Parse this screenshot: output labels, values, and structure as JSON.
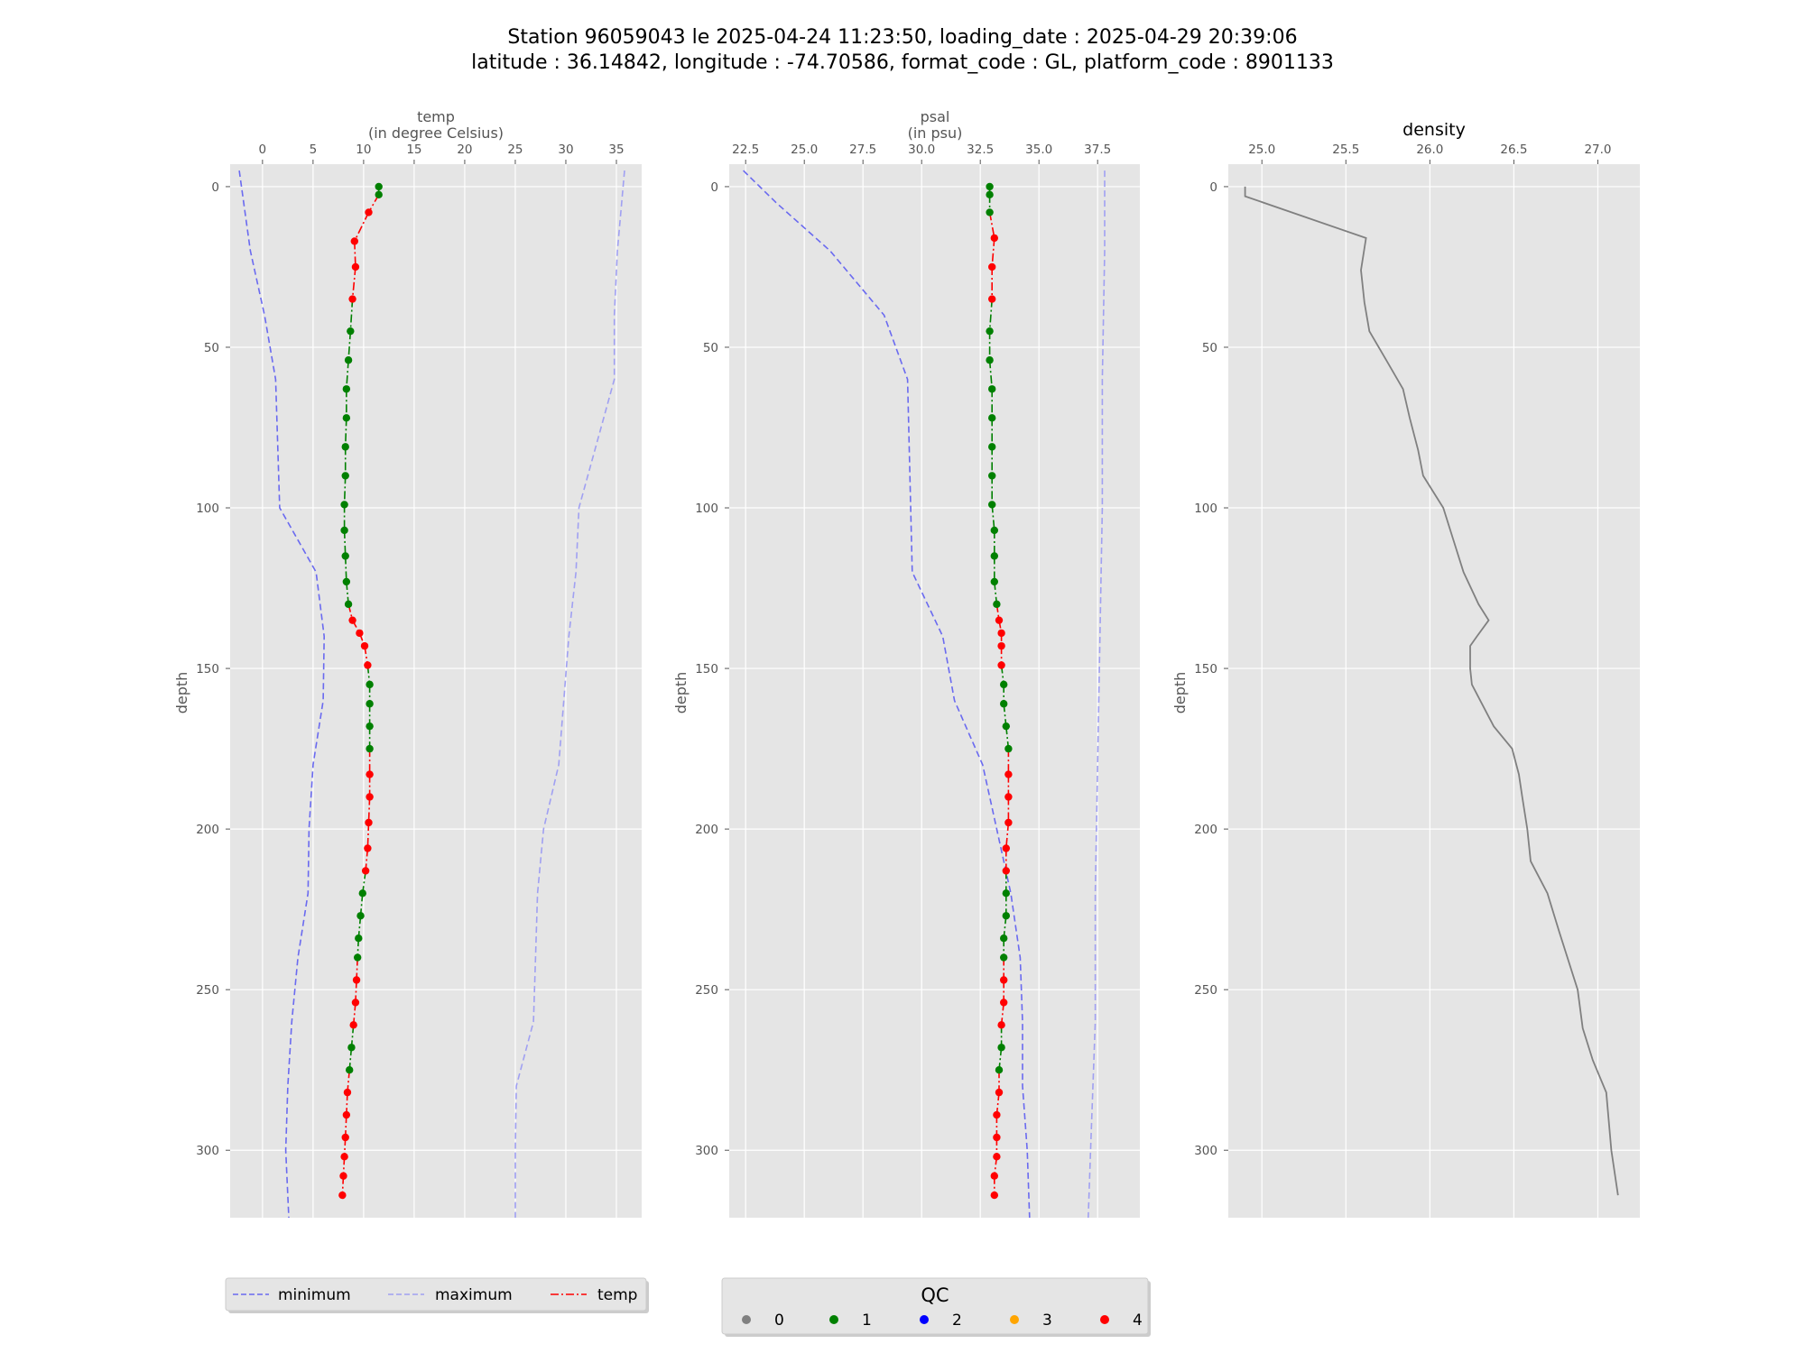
{
  "figure": {
    "title_line1": "Station 96059043 le 2025-04-24 11:23:50, loading_date : 2025-04-29 20:39:06",
    "title_line2": "latitude : 36.14842, longitude : -74.70586, format_code : GL, platform_code : 8901133"
  },
  "colors": {
    "panel_bg": "#e5e5e5",
    "grid": "#ffffff",
    "minimum": "#6a6af0",
    "maximum": "#a0a0f2",
    "qc_line_good": "#008000",
    "qc_line_bad": "#ff0000",
    "density_line": "#808080"
  },
  "chart_data": [
    {
      "type": "line",
      "panel": "temp",
      "xlabel_line1": "temp",
      "xlabel_line2": "(in degree Celsius)",
      "ylabel": "depth",
      "xlim": [
        -3.2,
        37.5
      ],
      "ylim": [
        321,
        -7
      ],
      "xticks": [
        0,
        5,
        10,
        15,
        20,
        25,
        30,
        35
      ],
      "yticks": [
        0,
        50,
        100,
        150,
        200,
        250,
        300
      ],
      "grid": true,
      "x_axis_position": "top",
      "minimum": {
        "name": "minimum",
        "depth": [
          -5,
          20,
          40,
          60,
          100,
          120,
          140,
          160,
          180,
          200,
          220,
          240,
          260,
          280,
          300,
          321
        ],
        "values": [
          -2.3,
          -1.2,
          0.2,
          1.3,
          1.7,
          5.3,
          6.1,
          6.0,
          5.0,
          4.6,
          4.5,
          3.5,
          2.9,
          2.5,
          2.3,
          2.6
        ]
      },
      "maximum": {
        "name": "maximum",
        "depth": [
          -5,
          20,
          40,
          60,
          100,
          120,
          140,
          160,
          180,
          200,
          220,
          240,
          260,
          280,
          300,
          321
        ],
        "values": [
          35.8,
          35.1,
          34.8,
          34.8,
          31.3,
          31.0,
          30.3,
          29.8,
          29.3,
          27.8,
          27.2,
          27.0,
          26.8,
          25.1,
          25.0,
          25.0
        ]
      },
      "profile": {
        "name": "temp",
        "depth": [
          0,
          2.5,
          8,
          17,
          25,
          35,
          45,
          54,
          63,
          72,
          81,
          90,
          99,
          107,
          115,
          123,
          130,
          135,
          139,
          143,
          149,
          155,
          161,
          168,
          175,
          183,
          190,
          198,
          206,
          213,
          220,
          227,
          234,
          240,
          247,
          254,
          261,
          268,
          275,
          282,
          289,
          296,
          302,
          308,
          314
        ],
        "values": [
          11.5,
          11.5,
          10.5,
          9.1,
          9.2,
          8.9,
          8.7,
          8.5,
          8.3,
          8.3,
          8.2,
          8.2,
          8.1,
          8.1,
          8.2,
          8.3,
          8.5,
          8.9,
          9.6,
          10.1,
          10.4,
          10.6,
          10.6,
          10.6,
          10.6,
          10.6,
          10.6,
          10.5,
          10.4,
          10.2,
          9.9,
          9.7,
          9.5,
          9.4,
          9.3,
          9.2,
          9.0,
          8.8,
          8.6,
          8.4,
          8.3,
          8.2,
          8.1,
          8.0,
          7.9
        ],
        "qc": [
          1,
          1,
          4,
          4,
          4,
          4,
          1,
          1,
          1,
          1,
          1,
          1,
          1,
          1,
          1,
          1,
          1,
          4,
          4,
          4,
          4,
          1,
          1,
          1,
          1,
          4,
          4,
          4,
          4,
          4,
          1,
          1,
          1,
          1,
          4,
          4,
          4,
          1,
          1,
          4,
          4,
          4,
          4,
          4,
          4
        ]
      }
    },
    {
      "type": "line",
      "panel": "psal",
      "xlabel_line1": "psal",
      "xlabel_line2": "(in psu)",
      "ylabel": "depth",
      "xlim": [
        21.8,
        39.3
      ],
      "ylim": [
        321,
        -7
      ],
      "xticks": [
        22.5,
        25.0,
        27.5,
        30.0,
        32.5,
        35.0,
        37.5
      ],
      "xtick_labels": [
        "22.5",
        "25.0",
        "27.5",
        "30.0",
        "32.5",
        "35.0",
        "37.5"
      ],
      "yticks": [
        0,
        50,
        100,
        150,
        200,
        250,
        300
      ],
      "grid": true,
      "x_axis_position": "top",
      "minimum": {
        "name": "minimum",
        "depth": [
          -5,
          5,
          20,
          40,
          60,
          120,
          140,
          160,
          180,
          200,
          220,
          240,
          260,
          280,
          300,
          321
        ],
        "values": [
          22.4,
          23.8,
          26.1,
          28.4,
          29.4,
          29.6,
          30.9,
          31.4,
          32.6,
          33.2,
          33.8,
          34.2,
          34.3,
          34.3,
          34.5,
          34.6
        ]
      },
      "maximum": {
        "name": "maximum",
        "depth": [
          -5,
          20,
          60,
          100,
          140,
          180,
          220,
          260,
          280,
          300,
          321
        ],
        "values": [
          37.8,
          37.8,
          37.7,
          37.7,
          37.6,
          37.5,
          37.4,
          37.4,
          37.3,
          37.2,
          37.1
        ]
      },
      "profile": {
        "name": "psal",
        "depth": [
          0,
          2.5,
          8,
          16,
          25,
          35,
          45,
          54,
          63,
          72,
          81,
          90,
          99,
          107,
          115,
          123,
          130,
          135,
          139,
          143,
          149,
          155,
          161,
          168,
          175,
          183,
          190,
          198,
          206,
          213,
          220,
          227,
          234,
          240,
          247,
          254,
          261,
          268,
          275,
          282,
          289,
          296,
          302,
          308,
          314
        ],
        "values": [
          32.9,
          32.9,
          32.9,
          33.1,
          33.0,
          33.0,
          32.9,
          32.9,
          33.0,
          33.0,
          33.0,
          33.0,
          33.0,
          33.1,
          33.1,
          33.1,
          33.2,
          33.3,
          33.4,
          33.4,
          33.4,
          33.5,
          33.5,
          33.6,
          33.7,
          33.7,
          33.7,
          33.7,
          33.6,
          33.6,
          33.6,
          33.6,
          33.5,
          33.5,
          33.5,
          33.5,
          33.4,
          33.4,
          33.3,
          33.3,
          33.2,
          33.2,
          33.2,
          33.1,
          33.1
        ],
        "qc": [
          1,
          1,
          1,
          4,
          4,
          4,
          1,
          1,
          1,
          1,
          1,
          1,
          1,
          1,
          1,
          1,
          1,
          4,
          4,
          4,
          4,
          1,
          1,
          1,
          1,
          4,
          4,
          4,
          4,
          4,
          1,
          1,
          1,
          1,
          4,
          4,
          4,
          1,
          1,
          4,
          4,
          4,
          4,
          4,
          4
        ]
      }
    },
    {
      "type": "line",
      "panel": "density",
      "title": "density",
      "ylabel": "depth",
      "xlim": [
        24.8,
        27.25
      ],
      "ylim": [
        321,
        -7
      ],
      "xticks": [
        25.0,
        25.5,
        26.0,
        26.5,
        27.0
      ],
      "xtick_labels": [
        "25.0",
        "25.5",
        "26.0",
        "26.5",
        "27.0"
      ],
      "yticks": [
        0,
        50,
        100,
        150,
        200,
        250,
        300
      ],
      "grid": true,
      "x_axis_position": "top",
      "profile": {
        "depth": [
          0,
          3,
          16,
          26,
          36,
          45,
          54,
          63,
          72,
          82,
          90,
          100,
          110,
          120,
          130,
          135,
          140,
          143,
          150,
          155,
          162,
          168,
          175,
          183,
          190,
          200,
          210,
          213,
          220,
          232,
          250,
          262,
          272,
          282,
          300,
          314
        ],
        "values": [
          24.9,
          24.9,
          25.62,
          25.59,
          25.61,
          25.64,
          25.74,
          25.84,
          25.88,
          25.93,
          25.96,
          26.08,
          26.14,
          26.2,
          26.29,
          26.35,
          26.28,
          26.24,
          26.24,
          26.25,
          26.32,
          26.38,
          26.49,
          26.53,
          26.55,
          26.58,
          26.6,
          26.63,
          26.7,
          26.77,
          26.88,
          26.91,
          26.97,
          27.05,
          27.08,
          27.12
        ]
      }
    }
  ],
  "legend_profile": {
    "items": [
      {
        "label": "minimum",
        "style": "dashed",
        "color": "#6a6af0"
      },
      {
        "label": "maximum",
        "style": "dashed",
        "color": "#a0a0f2"
      },
      {
        "label": "temp",
        "style": "dashdot",
        "color": "#ff0000"
      }
    ]
  },
  "legend_qc": {
    "title": "QC",
    "items": [
      {
        "label": "0",
        "color": "#808080"
      },
      {
        "label": "1",
        "color": "#008000"
      },
      {
        "label": "2",
        "color": "#0000ff"
      },
      {
        "label": "3",
        "color": "#ffa500"
      },
      {
        "label": "4",
        "color": "#ff0000"
      }
    ]
  }
}
